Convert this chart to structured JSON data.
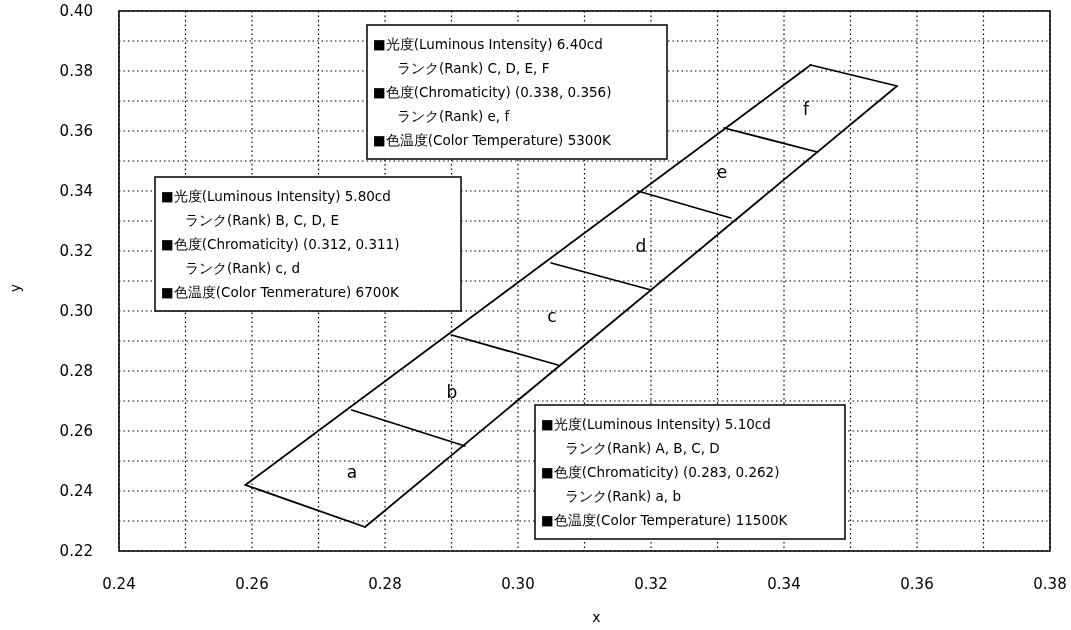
{
  "chart_data": {
    "type": "line",
    "xlabel": "x",
    "ylabel": "y",
    "xlim": [
      0.24,
      0.38
    ],
    "ylim": [
      0.22,
      0.4
    ],
    "xticks": [
      {
        "value": 0.24,
        "label": "0.24"
      },
      {
        "value": 0.25,
        "label": null
      },
      {
        "value": 0.26,
        "label": "0.26"
      },
      {
        "value": 0.27,
        "label": null
      },
      {
        "value": 0.28,
        "label": "0.28"
      },
      {
        "value": 0.29,
        "label": null
      },
      {
        "value": 0.3,
        "label": "0.30"
      },
      {
        "value": 0.31,
        "label": null
      },
      {
        "value": 0.32,
        "label": "0.32"
      },
      {
        "value": 0.33,
        "label": null
      },
      {
        "value": 0.34,
        "label": "0.34"
      },
      {
        "value": 0.35,
        "label": null
      },
      {
        "value": 0.36,
        "label": "0.36"
      },
      {
        "value": 0.37,
        "label": null
      },
      {
        "value": 0.38,
        "label": "0.38"
      }
    ],
    "yticks": [
      {
        "value": 0.22,
        "label": "0.22"
      },
      {
        "value": 0.23,
        "label": null
      },
      {
        "value": 0.24,
        "label": "0.24"
      },
      {
        "value": 0.25,
        "label": null
      },
      {
        "value": 0.26,
        "label": "0.26"
      },
      {
        "value": 0.27,
        "label": null
      },
      {
        "value": 0.28,
        "label": "0.28"
      },
      {
        "value": 0.29,
        "label": null
      },
      {
        "value": 0.3,
        "label": "0.30"
      },
      {
        "value": 0.31,
        "label": null
      },
      {
        "value": 0.32,
        "label": "0.32"
      },
      {
        "value": 0.33,
        "label": null
      },
      {
        "value": 0.34,
        "label": "0.34"
      },
      {
        "value": 0.35,
        "label": null
      },
      {
        "value": 0.36,
        "label": "0.36"
      },
      {
        "value": 0.37,
        "label": null
      },
      {
        "value": 0.38,
        "label": "0.38"
      },
      {
        "value": 0.39,
        "label": null
      },
      {
        "value": 0.4,
        "label": "0.40"
      }
    ],
    "grid": true,
    "series": [
      {
        "color": "#000000",
        "x": [
          0.259,
          0.277
        ],
        "values": [
          0.242,
          0.228
        ]
      },
      {
        "color": "#000000",
        "x": [
          0.259,
          0.344
        ],
        "values": [
          0.242,
          0.382
        ]
      },
      {
        "color": "#000000",
        "x": [
          0.277,
          0.357
        ],
        "values": [
          0.228,
          0.375
        ]
      },
      {
        "color": "#000000",
        "x": [
          0.344,
          0.357
        ],
        "values": [
          0.382,
          0.375
        ]
      },
      {
        "color": "#000000",
        "x": [
          0.275,
          0.292
        ],
        "values": [
          0.267,
          0.255
        ]
      },
      {
        "color": "#000000",
        "x": [
          0.29,
          0.306
        ],
        "values": [
          0.292,
          0.282
        ]
      },
      {
        "color": "#000000",
        "x": [
          0.305,
          0.32
        ],
        "values": [
          0.316,
          0.307
        ]
      },
      {
        "color": "#000000",
        "x": [
          0.318,
          0.332
        ],
        "values": [
          0.34,
          0.331
        ]
      },
      {
        "color": "#000000",
        "x": [
          0.331,
          0.345
        ],
        "values": [
          0.361,
          0.353
        ]
      }
    ],
    "annotations": [
      "■光度(Luminous Intensity) 6.40cd",
      "ランク(Rank) C, D, E, F",
      "■色度(Chromaticity) (0.338, 0.356)",
      "ランク(Rank) e, f",
      "■色温度(Color Temperature) 5300K",
      "■光度(Luminous Intensity) 5.80cd",
      "ランク(Rank) B, C, D, E",
      "■色度(Chromaticity) (0.312, 0.311)",
      "ランク(Rank) c, d",
      "■色温度(Color Tenmerature) 6700K",
      "■光度(Luminous Intensity) 5.10cd",
      "ランク(Rank) A, B, C, D",
      "■色度(Chromaticity) (0.283, 0.262)",
      "ランク(Rank) a, b",
      "■色温度(Color Temperature) 11500K",
      "a",
      "b",
      "c",
      "d",
      "e",
      "f"
    ]
  }
}
